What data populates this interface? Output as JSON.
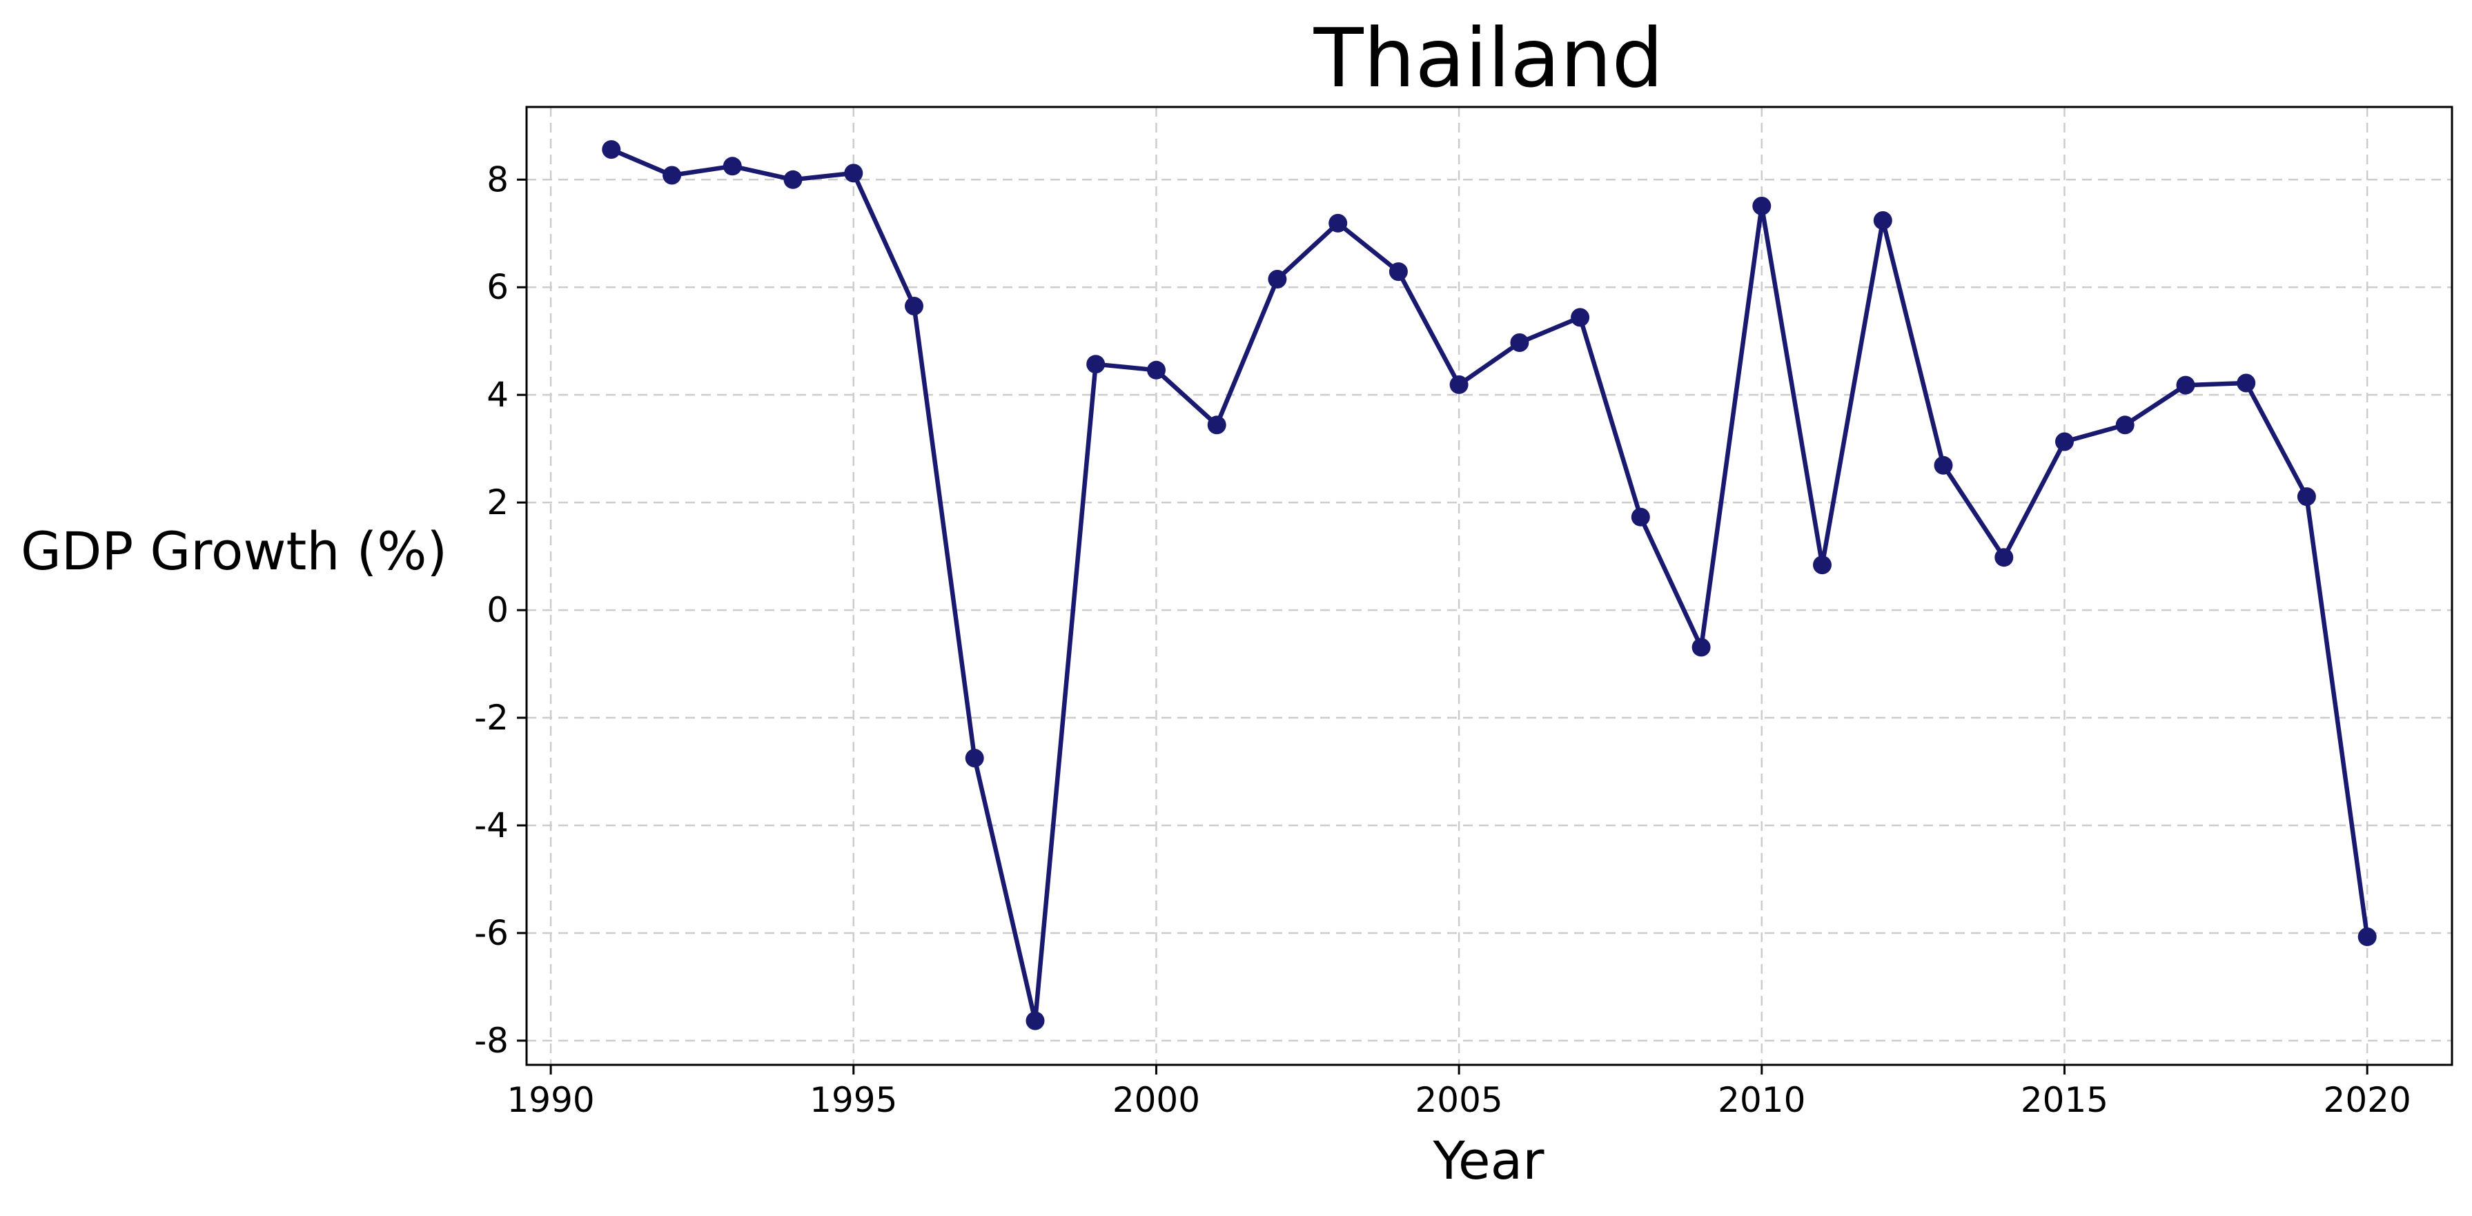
{
  "chart_data": {
    "type": "line",
    "title": "Thailand",
    "xlabel": "Year",
    "ylabel": "GDP Growth (%)",
    "xlim": [
      1989.6,
      2021.4
    ],
    "ylim": [
      -8.45,
      9.35
    ],
    "xticks": [
      1990,
      1995,
      2000,
      2005,
      2010,
      2015,
      2020
    ],
    "yticks": [
      -8,
      -6,
      -4,
      -2,
      0,
      2,
      4,
      6,
      8
    ],
    "xtick_labels": [
      "1990",
      "1995",
      "2000",
      "2005",
      "2010",
      "2015",
      "2020"
    ],
    "ytick_labels": [
      "-8",
      "-6",
      "-4",
      "-2",
      "0",
      "2",
      "4",
      "6",
      "8"
    ],
    "grid": true,
    "legend": "none",
    "series": [
      {
        "color": "#191970",
        "marker": "circle",
        "x": [
          1991,
          1992,
          1993,
          1994,
          1995,
          1996,
          1997,
          1998,
          1999,
          2000,
          2001,
          2002,
          2003,
          2004,
          2005,
          2006,
          2007,
          2008,
          2009,
          2010,
          2011,
          2012,
          2013,
          2014,
          2015,
          2016,
          2017,
          2018,
          2019,
          2020
        ],
        "y": [
          8.56,
          8.08,
          8.25,
          8.0,
          8.12,
          5.65,
          -2.75,
          -7.63,
          4.57,
          4.46,
          3.44,
          6.15,
          7.19,
          6.29,
          4.19,
          4.97,
          5.44,
          1.73,
          -0.69,
          7.51,
          0.84,
          7.24,
          2.69,
          0.98,
          3.13,
          3.44,
          4.18,
          4.22,
          2.11,
          -6.07
        ]
      }
    ]
  }
}
